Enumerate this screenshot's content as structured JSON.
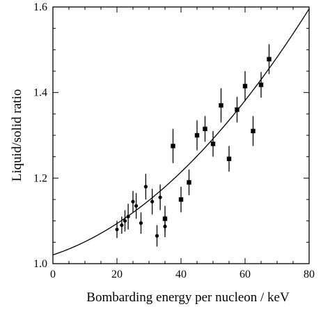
{
  "chart_data": {
    "type": "scatter",
    "title": "",
    "xlabel": "Bombarding energy per nucleon / keV",
    "ylabel": "Liquid/solid ratio",
    "xlim": [
      0,
      80
    ],
    "ylim": [
      1.0,
      1.6
    ],
    "x_ticks": [
      "0",
      "20",
      "40",
      "60",
      "80"
    ],
    "y_ticks": [
      "1.0",
      "1.2",
      "1.4",
      "1.6"
    ],
    "grid": false,
    "legend": "none",
    "series": [
      {
        "marker": "circle",
        "points": [
          {
            "x": 20.0,
            "y": 1.08,
            "err": 0.02
          },
          {
            "x": 21.5,
            "y": 1.09,
            "err": 0.02
          },
          {
            "x": 22.5,
            "y": 1.1,
            "err": 0.025
          },
          {
            "x": 23.5,
            "y": 1.11,
            "err": 0.03
          },
          {
            "x": 25.0,
            "y": 1.145,
            "err": 0.025
          },
          {
            "x": 26.0,
            "y": 1.135,
            "err": 0.03
          },
          {
            "x": 27.5,
            "y": 1.095,
            "err": 0.025
          },
          {
            "x": 29.0,
            "y": 1.18,
            "err": 0.03
          },
          {
            "x": 31.0,
            "y": 1.145,
            "err": 0.03
          },
          {
            "x": 32.5,
            "y": 1.065,
            "err": 0.025
          },
          {
            "x": 33.5,
            "y": 1.155,
            "err": 0.03
          },
          {
            "x": 35.0,
            "y": 1.087,
            "err": 0.025
          }
        ]
      },
      {
        "marker": "square",
        "points": [
          {
            "x": 35.0,
            "y": 1.105,
            "err": 0.03
          },
          {
            "x": 37.5,
            "y": 1.275,
            "err": 0.04
          },
          {
            "x": 40.0,
            "y": 1.15,
            "err": 0.03
          },
          {
            "x": 42.5,
            "y": 1.19,
            "err": 0.03
          },
          {
            "x": 45.0,
            "y": 1.3,
            "err": 0.035
          },
          {
            "x": 47.5,
            "y": 1.315,
            "err": 0.03
          },
          {
            "x": 50.0,
            "y": 1.28,
            "err": 0.03
          },
          {
            "x": 52.5,
            "y": 1.37,
            "err": 0.04
          },
          {
            "x": 55.0,
            "y": 1.245,
            "err": 0.03
          },
          {
            "x": 57.5,
            "y": 1.36,
            "err": 0.03
          },
          {
            "x": 60.0,
            "y": 1.415,
            "err": 0.035
          },
          {
            "x": 62.5,
            "y": 1.31,
            "err": 0.035
          },
          {
            "x": 65.0,
            "y": 1.418,
            "err": 0.03
          },
          {
            "x": 67.5,
            "y": 1.478,
            "err": 0.035
          }
        ]
      }
    ],
    "fit_curve": {
      "type": "quadratic",
      "x": [
        0,
        10,
        20,
        30,
        40,
        50,
        60,
        70,
        80
      ],
      "y": [
        1.032,
        1.045,
        1.081,
        1.141,
        1.22,
        1.3,
        1.39,
        1.48,
        1.59
      ]
    }
  }
}
